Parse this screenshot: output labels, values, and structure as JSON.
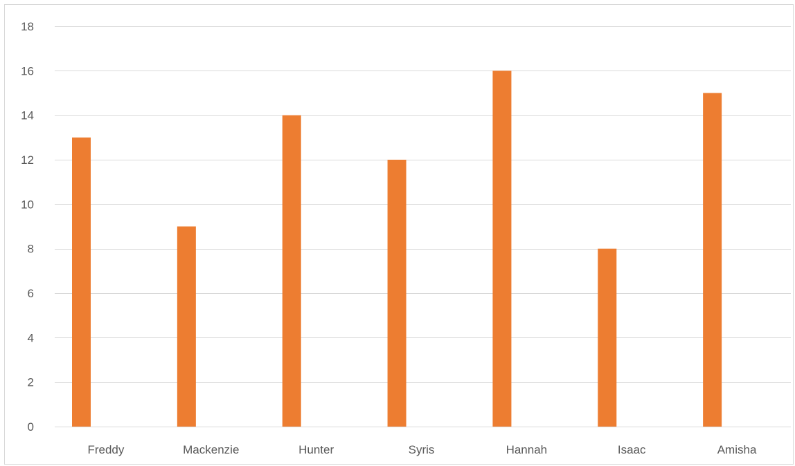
{
  "chart_data": {
    "type": "bar",
    "title": "",
    "xlabel": "",
    "ylabel": "",
    "categories": [
      "Freddy",
      "Mackenzie",
      "Hunter",
      "Syris",
      "Hannah",
      "Isaac",
      "Amisha"
    ],
    "series": [
      {
        "values": [
          13,
          9,
          14,
          12,
          16,
          8,
          15
        ],
        "color": "#ED7D31"
      }
    ],
    "ylim": [
      0,
      18
    ],
    "y_ticks": [
      0,
      2,
      4,
      6,
      8,
      10,
      12,
      14,
      16,
      18
    ],
    "grid": true,
    "gridline_color": "#D9D9D9",
    "legend": "none"
  }
}
